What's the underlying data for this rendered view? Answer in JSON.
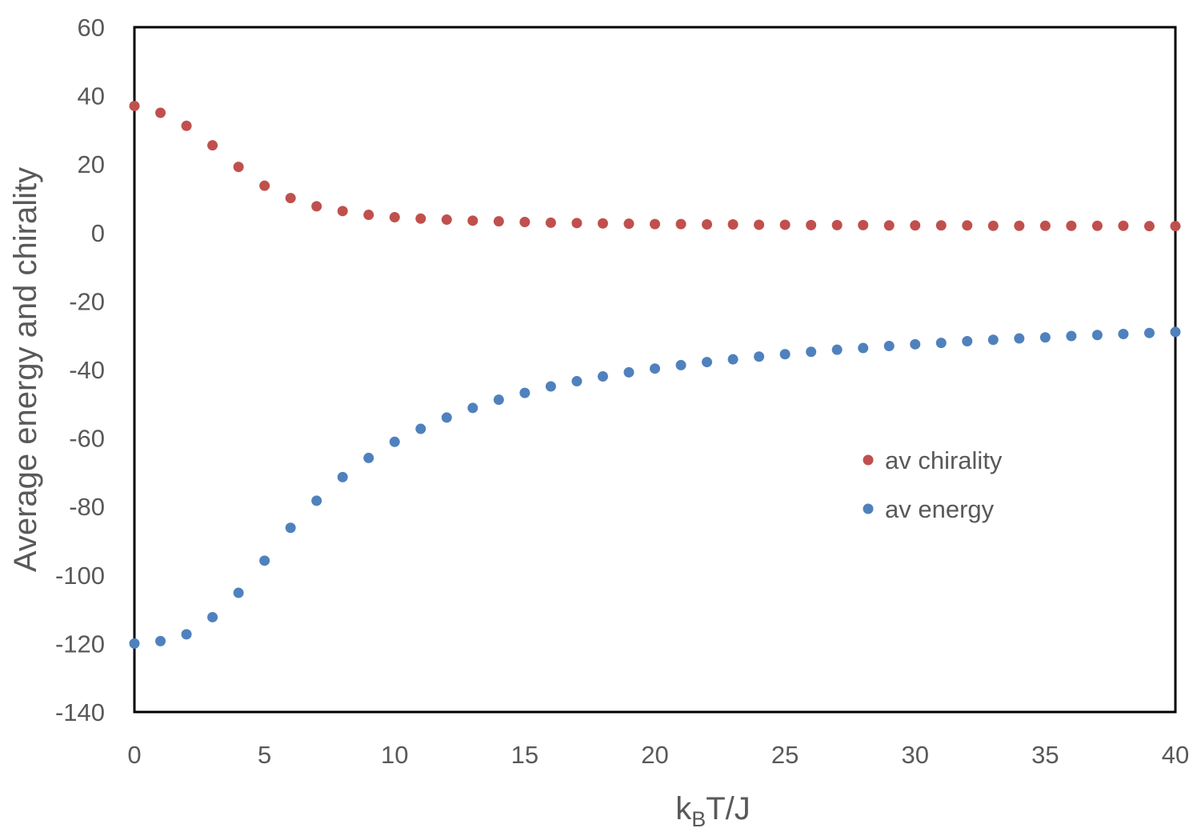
{
  "chart_data": {
    "type": "scatter",
    "title": "",
    "xlabel": {
      "main": "k",
      "sub": "B",
      "rest": "T/J"
    },
    "ylabel": "Average energy and chirality",
    "xlim": [
      0,
      40
    ],
    "ylim": [
      -140,
      60
    ],
    "xticks": [
      0,
      5,
      10,
      15,
      20,
      25,
      30,
      35,
      40
    ],
    "yticks": [
      60,
      40,
      20,
      0,
      -20,
      -40,
      -60,
      -80,
      -100,
      -120,
      -140
    ],
    "grid": false,
    "legend_position": "right-middle",
    "x": [
      0,
      1,
      2,
      3,
      4,
      5,
      6,
      7,
      8,
      9,
      10,
      11,
      12,
      13,
      14,
      15,
      16,
      17,
      18,
      19,
      20,
      21,
      22,
      23,
      24,
      25,
      26,
      27,
      28,
      29,
      30,
      31,
      32,
      33,
      34,
      35,
      36,
      37,
      38,
      39,
      40
    ],
    "series": [
      {
        "name": "av chirality",
        "color": "#C0504D",
        "values": [
          37,
          35,
          31.2,
          25.5,
          19.2,
          13.7,
          10.1,
          7.7,
          6.3,
          5.2,
          4.5,
          4.1,
          3.8,
          3.5,
          3.3,
          3.1,
          2.9,
          2.8,
          2.7,
          2.6,
          2.5,
          2.5,
          2.4,
          2.4,
          2.3,
          2.3,
          2.2,
          2.2,
          2.2,
          2.1,
          2.1,
          2.1,
          2.1,
          2.0,
          2.0,
          2.0,
          2.0,
          2.0,
          2.0,
          1.9,
          1.9
        ]
      },
      {
        "name": "av energy",
        "color": "#4F81BD",
        "values": [
          -120,
          -119.3,
          -117.3,
          -112.3,
          -105.2,
          -95.8,
          -86.2,
          -78.3,
          -71.4,
          -65.8,
          -61.1,
          -57.3,
          -54.0,
          -51.2,
          -48.8,
          -46.8,
          -44.9,
          -43.4,
          -42.0,
          -40.8,
          -39.7,
          -38.7,
          -37.8,
          -37.0,
          -36.2,
          -35.5,
          -34.8,
          -34.2,
          -33.7,
          -33.1,
          -32.6,
          -32.2,
          -31.7,
          -31.3,
          -30.9,
          -30.6,
          -30.2,
          -29.9,
          -29.6,
          -29.3,
          -29.0
        ]
      }
    ]
  }
}
